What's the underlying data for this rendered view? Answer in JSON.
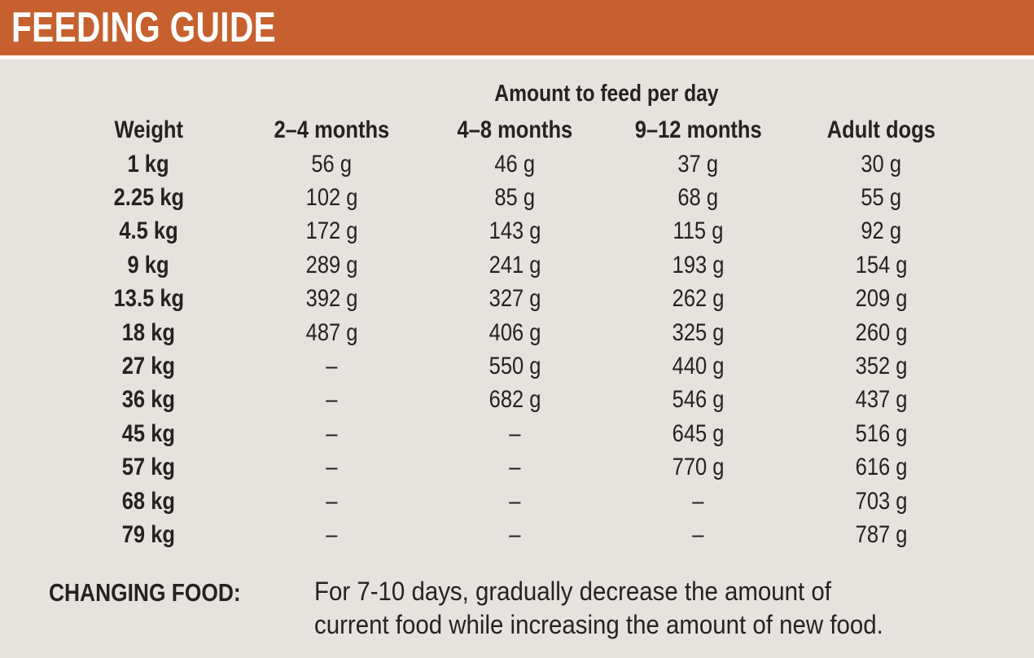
{
  "header": {
    "title": "FEEDING GUIDE"
  },
  "table": {
    "super_header": "Amount to feed per day",
    "columns": [
      "Weight",
      "2–4 months",
      "4–8 months",
      "9–12 months",
      "Adult dogs"
    ],
    "rows": [
      {
        "weight": "1 kg",
        "values": [
          "56 g",
          "46 g",
          "37 g",
          "30 g"
        ]
      },
      {
        "weight": "2.25 kg",
        "values": [
          "102 g",
          "85 g",
          "68 g",
          "55 g"
        ]
      },
      {
        "weight": "4.5 kg",
        "values": [
          "172 g",
          "143 g",
          "115 g",
          "92 g"
        ]
      },
      {
        "weight": "9 kg",
        "values": [
          "289 g",
          "241 g",
          "193 g",
          "154 g"
        ]
      },
      {
        "weight": "13.5 kg",
        "values": [
          "392 g",
          "327 g",
          "262 g",
          "209 g"
        ]
      },
      {
        "weight": "18 kg",
        "values": [
          "487 g",
          "406 g",
          "325 g",
          "260 g"
        ]
      },
      {
        "weight": "27 kg",
        "values": [
          "–",
          "550 g",
          "440 g",
          "352 g"
        ]
      },
      {
        "weight": "36 kg",
        "values": [
          "–",
          "682 g",
          "546 g",
          "437 g"
        ]
      },
      {
        "weight": "45 kg",
        "values": [
          "–",
          "–",
          "645 g",
          "516 g"
        ]
      },
      {
        "weight": "57 kg",
        "values": [
          "–",
          "–",
          "770 g",
          "616 g"
        ]
      },
      {
        "weight": "68 kg",
        "values": [
          "–",
          "–",
          "–",
          "703 g"
        ]
      },
      {
        "weight": "79 kg",
        "values": [
          "–",
          "–",
          "–",
          "787 g"
        ]
      }
    ]
  },
  "footer": {
    "label": "CHANGING FOOD:",
    "note_line1": "For 7-10 days, gradually decrease the amount of",
    "note_line2": "current food while increasing the amount of new food."
  },
  "colors": {
    "accent_orange": "#C6612F",
    "background": "#E6E2DE",
    "text": "#262222",
    "banner_text": "#FFFFFF",
    "divider": "#FDFCFB"
  }
}
